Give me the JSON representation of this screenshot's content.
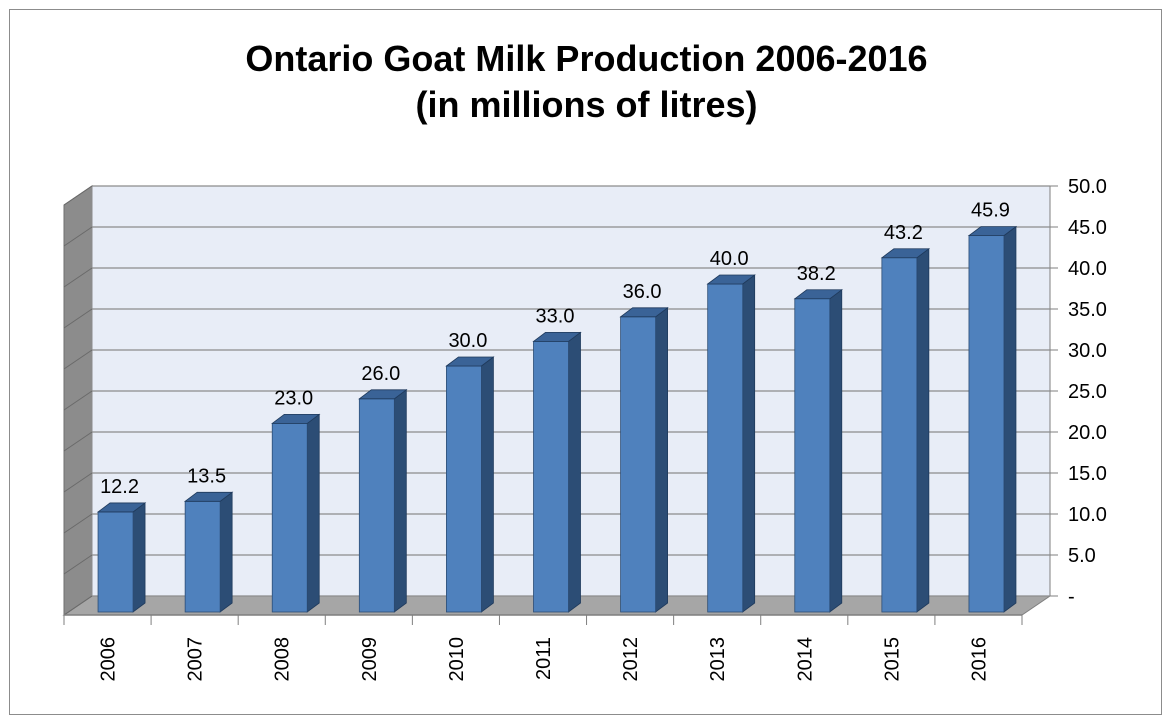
{
  "chart_data": {
    "type": "bar",
    "title": "Ontario Goat Milk Production 2006-2016",
    "subtitle": "(in millions of litres)",
    "categories": [
      "2006",
      "2007",
      "2008",
      "2009",
      "2010",
      "2011",
      "2012",
      "2013",
      "2014",
      "2015",
      "2016"
    ],
    "values": [
      12.2,
      13.5,
      23.0,
      26.0,
      30.0,
      33.0,
      36.0,
      40.0,
      38.2,
      43.2,
      45.9
    ],
    "data_labels": [
      "12.2",
      "13.5",
      "23.0",
      "26.0",
      "30.0",
      "33.0",
      "36.0",
      "40.0",
      "38.2",
      "43.2",
      "45.9"
    ],
    "y_ticks": [
      0,
      5,
      10,
      15,
      20,
      25,
      30,
      35,
      40,
      45,
      50
    ],
    "y_tick_labels": [
      "-",
      "5.0",
      "10.0",
      "15.0",
      "20.0",
      "25.0",
      "30.0",
      "35.0",
      "40.0",
      "45.0",
      "50.0"
    ],
    "ylim": [
      0,
      50
    ],
    "y_axis_side": "right",
    "x_tick_rotation": "vertical",
    "grid": true,
    "style": "3d-column",
    "colors": {
      "bar_front": "#4f81bd",
      "bar_side": "#2c4d75",
      "bar_top": "#3a6397",
      "back_wall": "#e8edf7",
      "side_wall": "#8c8c8c",
      "floor": "#a6a6a6",
      "gridline": "#8c8c8c"
    }
  }
}
